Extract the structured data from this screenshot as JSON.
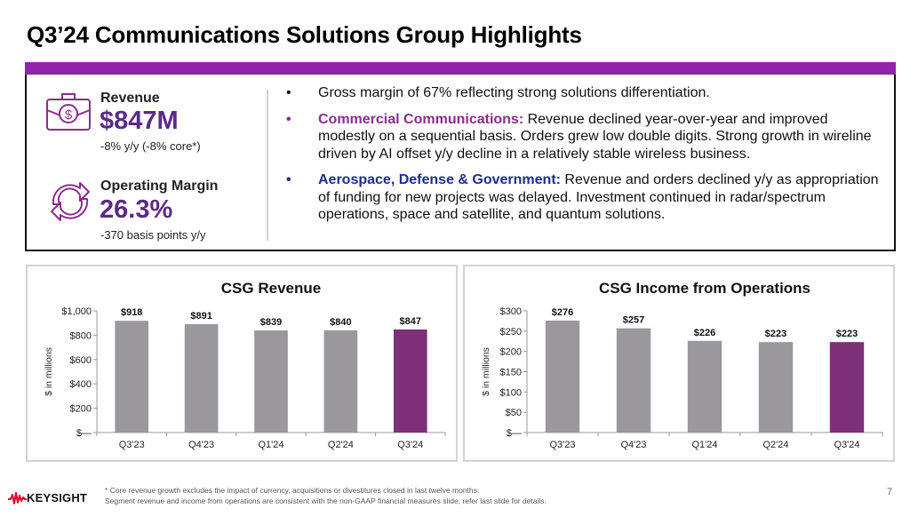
{
  "title": "Q3’24 Communications Solutions Group Highlights",
  "colors": {
    "band": "#9124a8",
    "accent_purple": "#5b2a86",
    "bar_gray": "#9a989c",
    "bar_highlight": "#7d2f7a",
    "commercial": "#8a2d8c",
    "aerospace": "#1f2d8f",
    "logo_red": "#e4002b"
  },
  "kpis": [
    {
      "icon": "briefcase-dollar-icon",
      "label": "Revenue",
      "value": "$847M",
      "sub": "-8% y/y (-8% core*)"
    },
    {
      "icon": "refresh-arrows-icon",
      "label": "Operating Margin",
      "value": "26.3%",
      "sub": "-370 basis points y/y"
    }
  ],
  "bullets": [
    {
      "bullet": "•",
      "heading": "",
      "text": "Gross margin of 67% reflecting strong solutions differentiation."
    },
    {
      "bullet": "•",
      "heading": "Commercial Communications:",
      "text": " Revenue declined year-over-year and improved modestly on a sequential basis.  Orders grew low double digits. Strong growth in wireline driven by AI offset y/y decline in a relatively stable wireless business."
    },
    {
      "bullet": "•",
      "heading": "Aerospace, Defense & Government:",
      "text": " Revenue and orders declined y/y as appropriation of funding for new projects was delayed. Investment continued in radar/spectrum operations, space and satellite, and quantum solutions."
    }
  ],
  "chart_data": [
    {
      "type": "bar",
      "title": "CSG Revenue",
      "ylabel": "$ in millions",
      "xlabel": "",
      "categories": [
        "Q3'23",
        "Q4'23",
        "Q1'24",
        "Q2'24",
        "Q3'24"
      ],
      "values": [
        918,
        891,
        839,
        840,
        847
      ],
      "data_labels": [
        "$918",
        "$891",
        "$839",
        "$840",
        "$847"
      ],
      "ylim": [
        0,
        1000
      ],
      "yticks": [
        0,
        200,
        400,
        600,
        800,
        1000
      ],
      "ytick_labels": [
        "$—",
        "$200",
        "$400",
        "$600",
        "$800",
        "$1,000"
      ],
      "highlight_index": 4,
      "grid": false
    },
    {
      "type": "bar",
      "title": "CSG Income from Operations",
      "ylabel": "$ in millions",
      "xlabel": "",
      "categories": [
        "Q3'23",
        "Q4'23",
        "Q1'24",
        "Q2'24",
        "Q3'24"
      ],
      "values": [
        276,
        257,
        226,
        223,
        223
      ],
      "data_labels": [
        "$276",
        "$257",
        "$226",
        "$223",
        "$223"
      ],
      "ylim": [
        0,
        300
      ],
      "yticks": [
        0,
        50,
        100,
        150,
        200,
        250,
        300
      ],
      "ytick_labels": [
        "$—",
        "$50",
        "$100",
        "$150",
        "$200",
        "$250",
        "$300"
      ],
      "highlight_index": 4,
      "grid": false
    }
  ],
  "footer": {
    "logo_text": "KEYSIGHT",
    "footnote_1": "* Core revenue growth excludes the impact of currency, acquisitions or divestitures closed in last twelve months.",
    "footnote_2": "Segment revenue and income from operations are consistent with the non-GAAP financial measures slide, refer last slide for details.",
    "page_number": "7"
  }
}
